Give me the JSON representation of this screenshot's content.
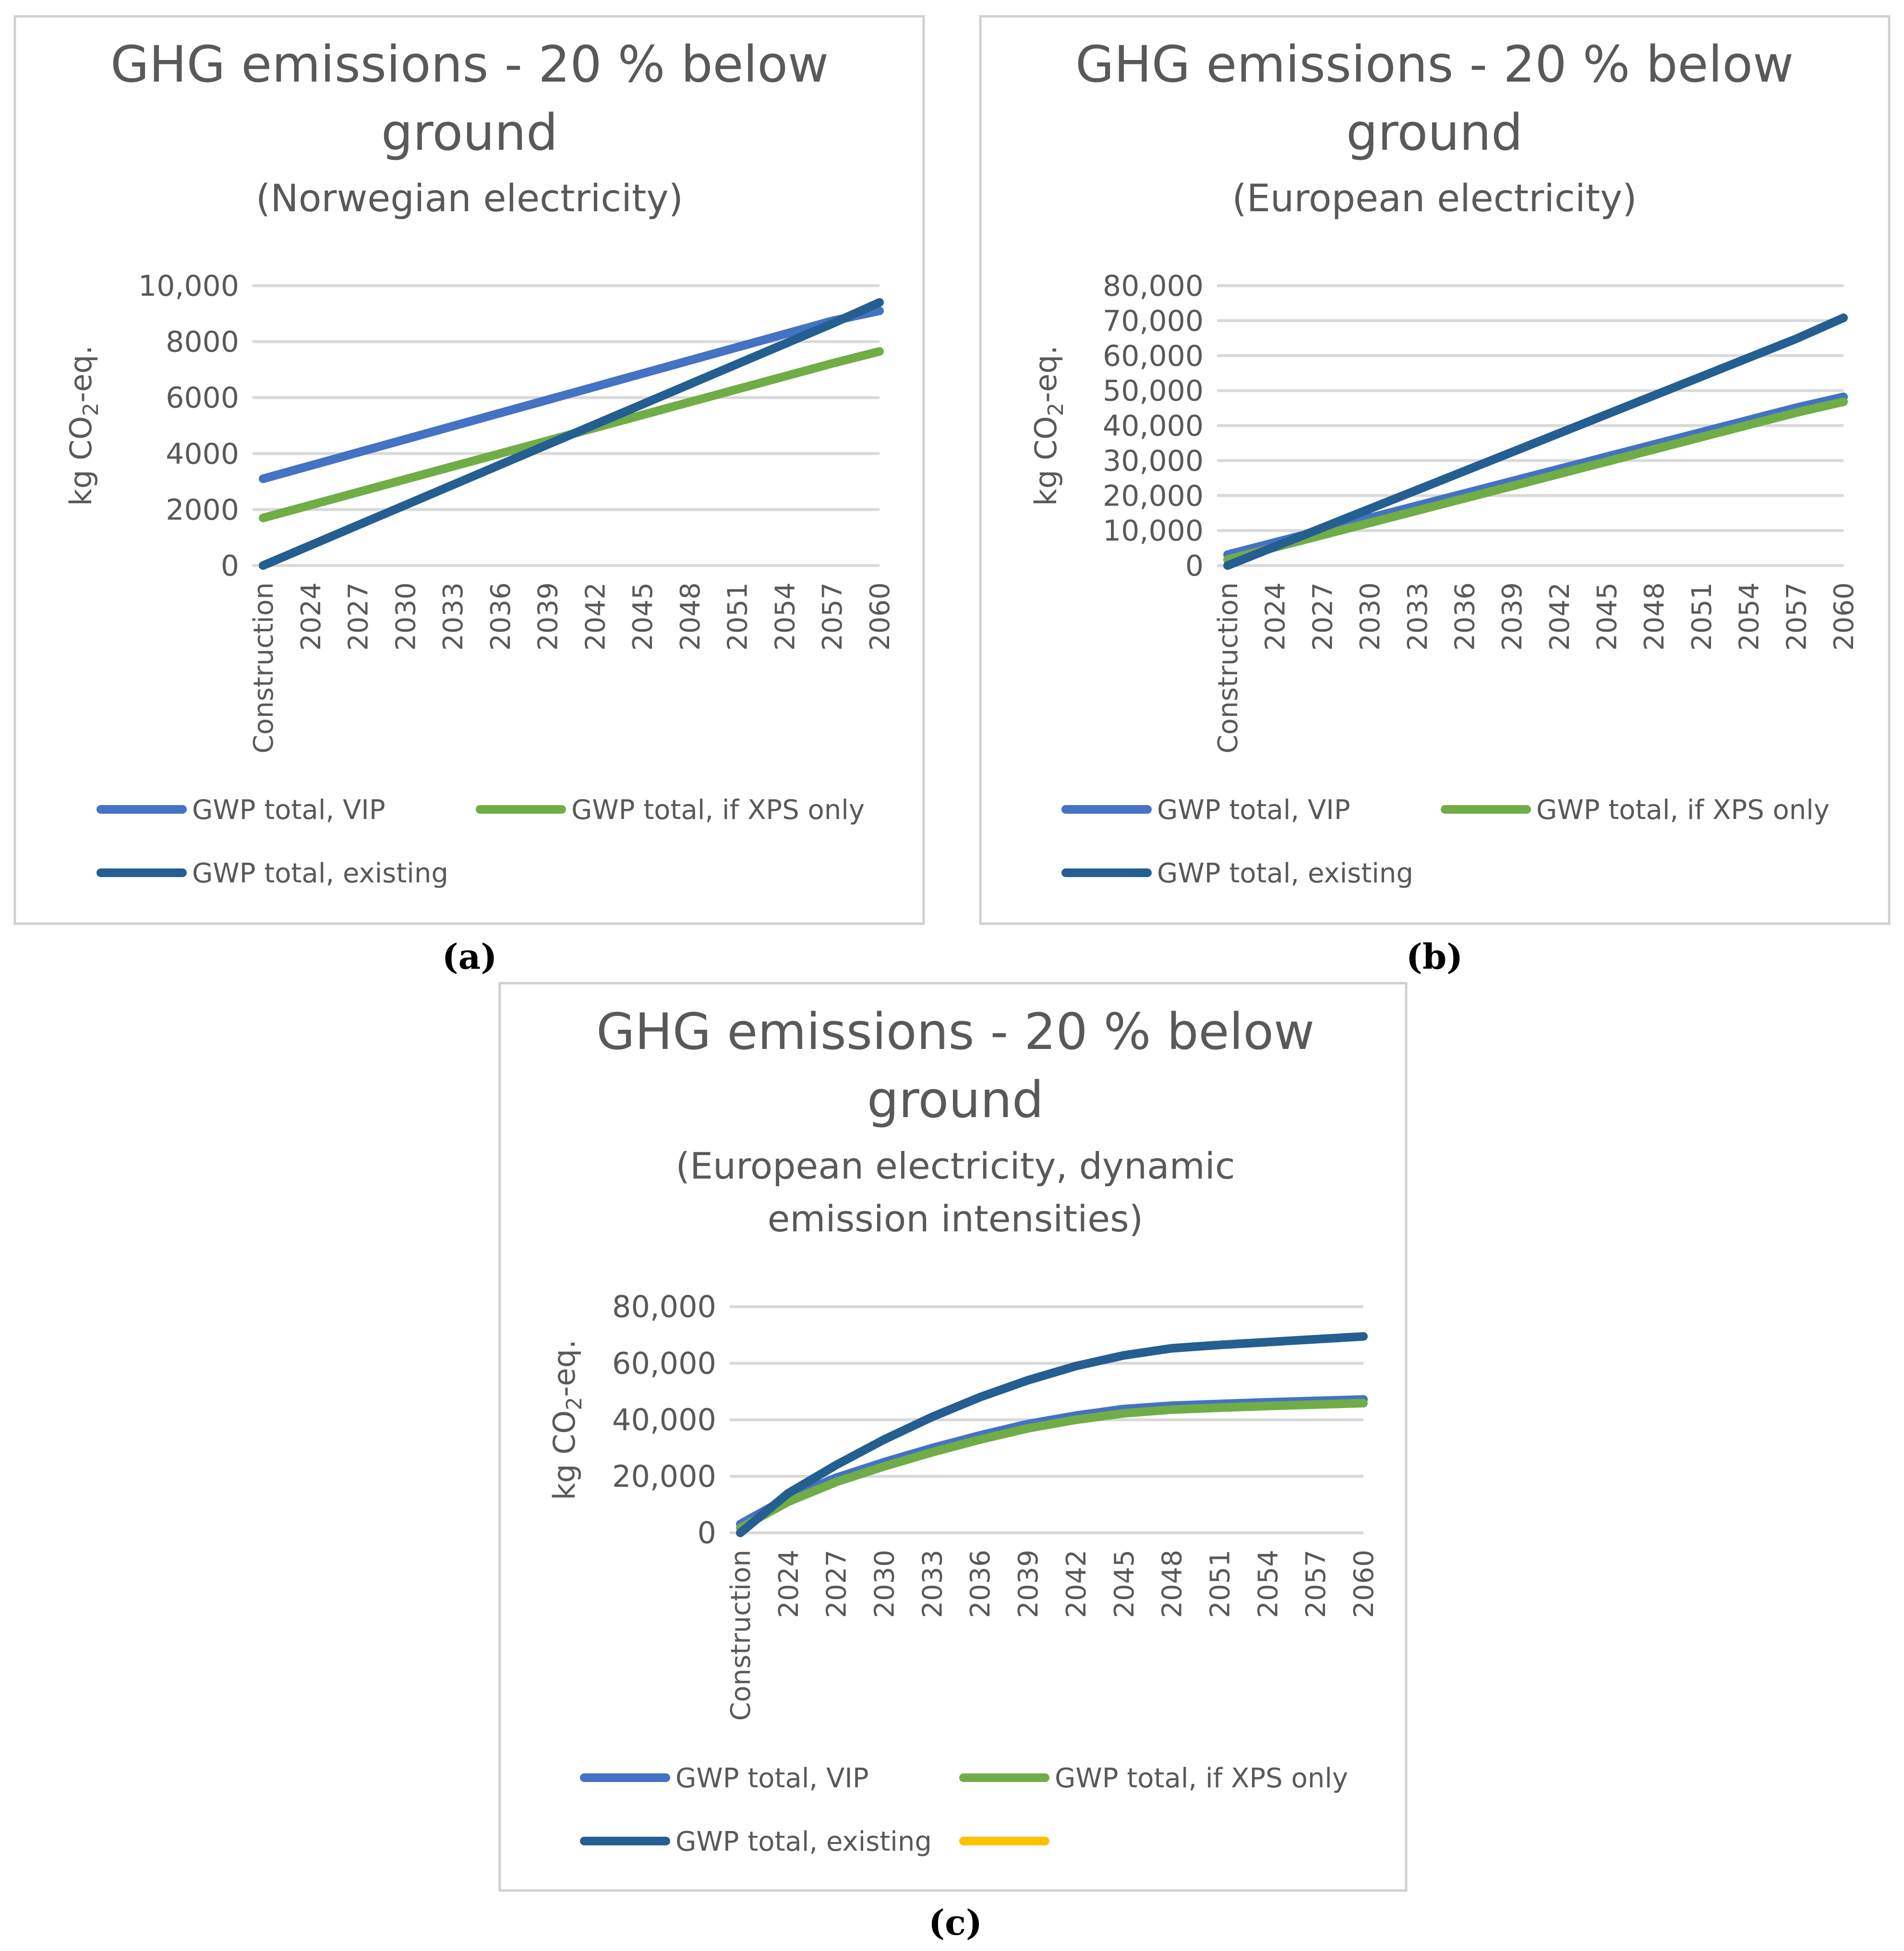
{
  "colors": {
    "vip": "#4472c4",
    "xps": "#70ad47",
    "existing": "#255e91",
    "extra": "#ffc000",
    "text": "#595959",
    "grid": "#d9d9d9"
  },
  "chart_data": [
    {
      "type": "line",
      "caption": "(a)",
      "title": [
        "GHG emissions - 20 % below",
        "ground"
      ],
      "subtitle": [
        "(Norwegian electricity)"
      ],
      "ylabel_main": "kg CO",
      "ylabel_sub": "2",
      "ylabel_tail": "-eq.",
      "ylim": [
        0,
        10000
      ],
      "yticks": [
        0,
        2000,
        4000,
        6000,
        8000,
        10000
      ],
      "ytick_labels": [
        "0",
        "2000",
        "4000",
        "6000",
        "8000",
        "10,000"
      ],
      "grid": true,
      "categories": [
        "Construction",
        "2024",
        "2027",
        "2030",
        "2033",
        "2036",
        "2039",
        "2042",
        "2045",
        "2048",
        "2051",
        "2054",
        "2057",
        "2060"
      ],
      "series": [
        {
          "name": "GWP total, VIP",
          "color_key": "vip",
          "values": [
            3100,
            3570,
            4040,
            4510,
            4980,
            5450,
            5920,
            6390,
            6860,
            7330,
            7800,
            8270,
            8740,
            9100
          ]
        },
        {
          "name": "GWP total, if XPS only",
          "color_key": "xps",
          "values": [
            1700,
            2160,
            2620,
            3080,
            3540,
            4000,
            4460,
            4920,
            5380,
            5840,
            6300,
            6760,
            7220,
            7650
          ]
        },
        {
          "name": "GWP total, existing",
          "color_key": "existing",
          "values": [
            0,
            720,
            1440,
            2160,
            2880,
            3600,
            4320,
            5040,
            5760,
            6480,
            7200,
            7920,
            8640,
            9400
          ]
        }
      ],
      "legend": [
        {
          "label": "GWP total, VIP",
          "color_key": "vip"
        },
        {
          "label": "GWP total, if XPS only",
          "color_key": "xps"
        },
        {
          "label": "GWP total, existing",
          "color_key": "existing"
        }
      ]
    },
    {
      "type": "line",
      "caption": "(b)",
      "title": [
        "GHG emissions - 20 % below",
        "ground"
      ],
      "subtitle": [
        "(European electricity)"
      ],
      "ylabel_main": "kg CO",
      "ylabel_sub": "2",
      "ylabel_tail": "-eq.",
      "ylim": [
        0,
        80000
      ],
      "yticks": [
        0,
        10000,
        20000,
        30000,
        40000,
        50000,
        60000,
        70000,
        80000
      ],
      "ytick_labels": [
        "0",
        "10,000",
        "20,000",
        "30,000",
        "40,000",
        "50,000",
        "60,000",
        "70,000",
        "80,000"
      ],
      "grid": true,
      "categories": [
        "Construction",
        "2024",
        "2027",
        "2030",
        "2033",
        "2036",
        "2039",
        "2042",
        "2045",
        "2048",
        "2051",
        "2054",
        "2057",
        "2060"
      ],
      "series": [
        {
          "name": "GWP total, VIP",
          "color_key": "vip",
          "values": [
            3100,
            6600,
            10100,
            13600,
            17100,
            20600,
            24100,
            27600,
            31100,
            34600,
            38100,
            41600,
            45100,
            48200
          ]
        },
        {
          "name": "GWP total, if XPS only",
          "color_key": "xps",
          "values": [
            1700,
            5200,
            8700,
            12200,
            15700,
            19200,
            22700,
            26200,
            29700,
            33200,
            36700,
            40200,
            43700,
            46800
          ]
        },
        {
          "name": "GWP total, existing",
          "color_key": "existing",
          "values": [
            0,
            5400,
            10800,
            16200,
            21600,
            27000,
            32400,
            37800,
            43200,
            48600,
            54000,
            59400,
            64800,
            70800
          ]
        }
      ],
      "legend": [
        {
          "label": "GWP total, VIP",
          "color_key": "vip"
        },
        {
          "label": "GWP total, if XPS only",
          "color_key": "xps"
        },
        {
          "label": "GWP total, existing",
          "color_key": "existing"
        }
      ]
    },
    {
      "type": "line",
      "caption": "(c)",
      "title": [
        "GHG emissions - 20 % below",
        "ground"
      ],
      "subtitle": [
        "(European electricity, dynamic",
        "emission intensities)"
      ],
      "ylabel_main": "kg CO",
      "ylabel_sub": "2",
      "ylabel_tail": "-eq.",
      "ylim": [
        0,
        80000
      ],
      "yticks": [
        0,
        20000,
        40000,
        60000,
        80000
      ],
      "ytick_labels": [
        "0",
        "20,000",
        "40,000",
        "60,000",
        "80,000"
      ],
      "grid": true,
      "categories": [
        "Construction",
        "2024",
        "2027",
        "2030",
        "2033",
        "2036",
        "2039",
        "2042",
        "2045",
        "2048",
        "2051",
        "2054",
        "2057",
        "2060"
      ],
      "series": [
        {
          "name": "GWP total, VIP",
          "color_key": "vip",
          "values": [
            3100,
            12500,
            19500,
            25000,
            30000,
            34500,
            38500,
            41500,
            43800,
            45000,
            45600,
            46200,
            46700,
            47200
          ]
        },
        {
          "name": "GWP total, if XPS only",
          "color_key": "xps",
          "values": [
            1700,
            11000,
            18000,
            23500,
            28500,
            33000,
            37000,
            40000,
            42300,
            43600,
            44300,
            44900,
            45400,
            45900
          ]
        },
        {
          "name": "GWP total, existing",
          "color_key": "existing",
          "values": [
            0,
            14000,
            24000,
            33000,
            41000,
            48000,
            54000,
            59000,
            62800,
            65300,
            66500,
            67500,
            68500,
            69500
          ]
        }
      ],
      "legend": [
        {
          "label": "GWP total, VIP",
          "color_key": "vip"
        },
        {
          "label": "GWP total, if XPS only",
          "color_key": "xps"
        },
        {
          "label": "GWP total, existing",
          "color_key": "existing"
        },
        {
          "label": "",
          "color_key": "extra"
        }
      ]
    }
  ]
}
